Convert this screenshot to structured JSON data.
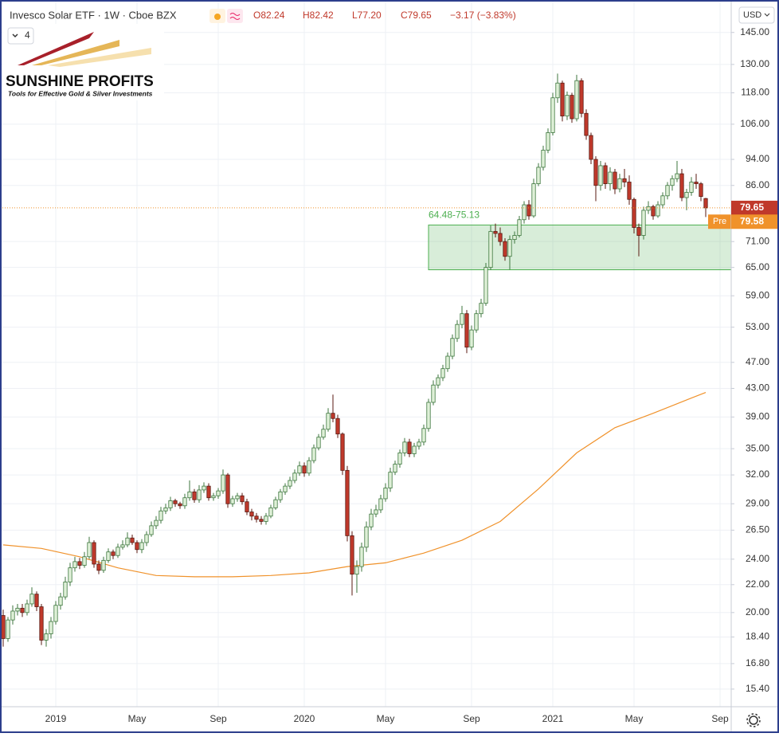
{
  "header": {
    "title": "Invesco Solar ETF · 1W · Cboe BZX",
    "ohlc_legend": [
      "O82.24",
      "H82.42",
      "L77.20",
      "C79.65",
      "−3.17 (−3.83%)"
    ],
    "interval_badge": "4",
    "currency": "USD"
  },
  "logo": {
    "name": "SUNSHINE PROFITS",
    "tagline": "Tools for Effective Gold & Silver Investments"
  },
  "chart_data": {
    "type": "candlestick",
    "log_scale": true,
    "grid": true,
    "up_color": "#dff0d8",
    "down_color": "#c0392b",
    "ylim": [
      14.5,
      162
    ],
    "yticks": [
      {
        "value": 15.4,
        "label": "15.40"
      },
      {
        "value": 16.8,
        "label": "16.80"
      },
      {
        "value": 18.4,
        "label": "18.40"
      },
      {
        "value": 20,
        "label": "20.00"
      },
      {
        "value": 22,
        "label": "22.00"
      },
      {
        "value": 24,
        "label": "24.00"
      },
      {
        "value": 26.5,
        "label": "26.50"
      },
      {
        "value": 29,
        "label": "29.00"
      },
      {
        "value": 32,
        "label": "32.00"
      },
      {
        "value": 35,
        "label": "35.00"
      },
      {
        "value": 39,
        "label": "39.00"
      },
      {
        "value": 43,
        "label": "43.00"
      },
      {
        "value": 47,
        "label": "47.00"
      },
      {
        "value": 53,
        "label": "53.00"
      },
      {
        "value": 59,
        "label": "59.00"
      },
      {
        "value": 65,
        "label": "65.00"
      },
      {
        "value": 71,
        "label": "71.00"
      },
      {
        "value": 86,
        "label": "86.00"
      },
      {
        "value": 94,
        "label": "94.00"
      },
      {
        "value": 106,
        "label": "106.00"
      },
      {
        "value": 118,
        "label": "118.00"
      },
      {
        "value": 130,
        "label": "130.00"
      },
      {
        "value": 145,
        "label": "145.00"
      }
    ],
    "categories": [
      null,
      null,
      null,
      null,
      null,
      null,
      null,
      null,
      null,
      null,
      null,
      "2019",
      null,
      null,
      null,
      null,
      null,
      null,
      null,
      null,
      null,
      null,
      null,
      null,
      null,
      null,
      null,
      null,
      "May",
      null,
      null,
      null,
      null,
      null,
      null,
      null,
      null,
      null,
      null,
      null,
      null,
      null,
      null,
      null,
      null,
      "Sep",
      null,
      null,
      null,
      null,
      null,
      null,
      null,
      null,
      null,
      null,
      null,
      null,
      null,
      null,
      null,
      null,
      null,
      "2020",
      null,
      null,
      null,
      null,
      null,
      null,
      null,
      null,
      null,
      null,
      null,
      null,
      null,
      null,
      null,
      null,
      "May",
      null,
      null,
      null,
      null,
      null,
      null,
      null,
      null,
      null,
      null,
      null,
      null,
      null,
      null,
      null,
      null,
      null,
      "Sep",
      null,
      null,
      null,
      null,
      null,
      null,
      null,
      null,
      null,
      null,
      null,
      null,
      null,
      null,
      null,
      null,
      "2021",
      null,
      null,
      null,
      null,
      null,
      null,
      null,
      null,
      null,
      null,
      null,
      null,
      null,
      null,
      null,
      null,
      "May",
      null,
      null,
      null,
      null,
      null,
      null,
      null,
      null,
      null,
      null,
      null,
      null,
      null,
      null,
      null,
      null,
      null,
      "Sep"
    ],
    "open": [
      19.8,
      18.3,
      19.5,
      20.1,
      20.3,
      20.0,
      20.6,
      21.3,
      20.4,
      18.2,
      18.6,
      19.4,
      20.5,
      21.1,
      22.2,
      23.3,
      23.8,
      23.5,
      24.2,
      25.4,
      23.6,
      23.1,
      23.9,
      24.6,
      24.3,
      25.0,
      25.2,
      25.8,
      25.4,
      24.8,
      25.4,
      26.1,
      26.9,
      27.4,
      28.3,
      28.6,
      29.3,
      29.0,
      28.8,
      29.6,
      30.2,
      29.4,
      30.4,
      30.8,
      29.6,
      29.8,
      30.3,
      32.0,
      29.0,
      29.5,
      29.8,
      29.2,
      28.2,
      27.8,
      27.5,
      27.3,
      27.8,
      28.6,
      29.4,
      30.2,
      30.8,
      31.4,
      32.2,
      33.0,
      32.2,
      33.6,
      35.1,
      36.4,
      37.4,
      39.5,
      38.8,
      36.8,
      32.5,
      26.0,
      22.8,
      23.4,
      25.0,
      26.8,
      28.0,
      28.4,
      29.5,
      30.6,
      32.3,
      33.2,
      34.5,
      35.8,
      34.4,
      35.3,
      35.8,
      37.5,
      41.0,
      43.5,
      44.6,
      46.0,
      48.0,
      51.0,
      53.5,
      55.5,
      49.5,
      52.5,
      55.5,
      57.5,
      65.0,
      73.5,
      73.0,
      71.0,
      67.5,
      71.5,
      72.5,
      76.5,
      80.5,
      77.5,
      86.5,
      91.5,
      97.0,
      103.0,
      116.0,
      122.0,
      109.0,
      117.0,
      108.0,
      123.0,
      110.0,
      102.0,
      94.0,
      86.0,
      92.0,
      86.5,
      90.0,
      85.0,
      88.0,
      87.0,
      82.0,
      74.5,
      72.5,
      79.0,
      80.0,
      77.5,
      80.5,
      83.0,
      86.0,
      88.0,
      89.5,
      82.5,
      84.0,
      87.0,
      86.5,
      82.24,
      null,
      null,
      null
    ],
    "high": [
      20.2,
      19.7,
      20.5,
      20.6,
      20.6,
      20.9,
      21.8,
      21.5,
      20.6,
      18.9,
      19.7,
      20.8,
      21.4,
      22.6,
      23.7,
      24.2,
      24.1,
      24.6,
      25.9,
      25.6,
      23.9,
      24.2,
      24.9,
      24.8,
      25.3,
      25.6,
      26.3,
      26.1,
      25.6,
      25.7,
      26.4,
      27.3,
      27.8,
      28.7,
      29.0,
      29.7,
      29.5,
      29.2,
      30.0,
      31.4,
      30.5,
      30.9,
      31.2,
      31.1,
      30.1,
      30.6,
      32.6,
      32.2,
      29.8,
      30.1,
      30.1,
      29.5,
      28.5,
      28.1,
      27.8,
      28.1,
      28.9,
      29.7,
      30.5,
      31.1,
      31.8,
      32.6,
      33.5,
      33.4,
      34.0,
      35.5,
      36.8,
      38.0,
      40.2,
      42.1,
      39.3,
      37.0,
      33.0,
      26.4,
      23.9,
      25.4,
      27.3,
      28.5,
      28.9,
      29.9,
      31.1,
      32.8,
      33.6,
      34.9,
      36.3,
      36.2,
      35.7,
      36.2,
      38.0,
      41.5,
      44.2,
      45.1,
      46.6,
      48.6,
      51.7,
      54.3,
      57.0,
      56.2,
      53.3,
      56.2,
      58.4,
      66.0,
      75.0,
      75.5,
      74.5,
      71.8,
      72.5,
      73.5,
      77.5,
      81.5,
      81.8,
      88.0,
      92.8,
      98.5,
      104.5,
      118.0,
      126.0,
      123.0,
      118.5,
      118.0,
      125.5,
      124.0,
      111.5,
      103.0,
      95.0,
      93.5,
      93.0,
      91.5,
      91.0,
      89.5,
      91.0,
      89.0,
      82.5,
      75.5,
      80.0,
      81.5,
      80.5,
      81.5,
      84.0,
      87.0,
      89.0,
      93.5,
      91.0,
      85.0,
      88.5,
      89.5,
      87.0,
      82.42,
      null,
      null,
      null
    ],
    "low": [
      17.8,
      18.1,
      19.2,
      19.8,
      19.7,
      19.8,
      20.4,
      20.1,
      17.9,
      17.8,
      18.3,
      19.2,
      20.2,
      20.9,
      21.9,
      23.0,
      23.2,
      23.3,
      24.0,
      23.3,
      22.8,
      22.9,
      23.7,
      24.0,
      24.1,
      24.8,
      25.0,
      25.2,
      24.5,
      24.5,
      25.1,
      25.9,
      26.6,
      27.1,
      28.0,
      28.3,
      28.7,
      28.5,
      28.5,
      29.3,
      29.1,
      29.1,
      30.1,
      29.3,
      29.3,
      29.5,
      30.0,
      28.6,
      28.7,
      29.2,
      28.9,
      27.9,
      27.4,
      27.2,
      27.0,
      27.0,
      27.6,
      28.4,
      29.1,
      29.9,
      30.5,
      31.1,
      31.9,
      31.8,
      31.9,
      33.3,
      34.8,
      36.1,
      37.1,
      38.3,
      36.3,
      32.0,
      25.5,
      21.2,
      21.4,
      23.0,
      24.6,
      26.5,
      27.7,
      28.1,
      29.2,
      30.2,
      32.0,
      32.8,
      34.1,
      34.0,
      34.0,
      34.9,
      35.4,
      37.1,
      40.6,
      43.0,
      44.1,
      45.5,
      47.5,
      50.4,
      52.8,
      48.5,
      49.0,
      52.0,
      54.8,
      57.0,
      64.4,
      72.0,
      70.0,
      66.5,
      64.5,
      70.5,
      72.0,
      75.5,
      76.5,
      77.0,
      85.8,
      90.5,
      96.0,
      102.0,
      114.0,
      107.0,
      107.5,
      106.5,
      107.0,
      108.5,
      100.5,
      92.5,
      81.5,
      84.5,
      85.0,
      84.5,
      83.5,
      84.0,
      85.5,
      80.5,
      73.0,
      67.5,
      71.5,
      78.0,
      76.5,
      77.0,
      79.5,
      82.0,
      84.5,
      87.0,
      81.5,
      79.0,
      83.0,
      85.0,
      81.5,
      77.2,
      null,
      null,
      null
    ],
    "close": [
      18.3,
      19.5,
      20.1,
      20.3,
      20.0,
      20.6,
      21.3,
      20.4,
      18.2,
      18.6,
      19.4,
      20.5,
      21.1,
      22.2,
      23.3,
      23.8,
      23.5,
      24.2,
      25.4,
      23.6,
      23.1,
      23.9,
      24.6,
      24.3,
      25.0,
      25.2,
      25.8,
      25.4,
      24.8,
      25.4,
      26.1,
      26.9,
      27.4,
      28.3,
      28.6,
      29.3,
      29.0,
      28.8,
      29.6,
      30.2,
      29.4,
      30.4,
      30.8,
      29.6,
      29.8,
      30.3,
      32.0,
      29.0,
      29.5,
      29.8,
      29.2,
      28.2,
      27.8,
      27.5,
      27.3,
      27.8,
      28.6,
      29.4,
      30.2,
      30.8,
      31.4,
      32.2,
      33.0,
      32.2,
      33.6,
      35.1,
      36.4,
      37.4,
      39.5,
      38.8,
      36.8,
      32.5,
      26.0,
      22.8,
      23.4,
      25.0,
      26.8,
      28.0,
      28.4,
      29.5,
      30.6,
      32.3,
      33.2,
      34.5,
      35.8,
      34.4,
      35.3,
      35.8,
      37.5,
      41.0,
      43.5,
      44.6,
      46.0,
      48.0,
      51.0,
      53.5,
      55.5,
      49.5,
      52.5,
      55.5,
      57.5,
      65.0,
      73.5,
      73.0,
      71.0,
      67.5,
      71.5,
      72.5,
      76.5,
      80.5,
      77.5,
      86.5,
      91.5,
      97.0,
      103.0,
      116.0,
      122.0,
      109.0,
      117.0,
      108.0,
      123.0,
      110.0,
      102.0,
      94.0,
      86.0,
      92.0,
      86.5,
      90.0,
      85.0,
      88.0,
      87.0,
      82.0,
      74.5,
      72.5,
      79.0,
      80.0,
      77.5,
      80.5,
      83.0,
      86.0,
      88.0,
      89.5,
      82.5,
      84.0,
      87.0,
      86.5,
      82.82,
      79.65,
      null,
      null,
      null
    ],
    "ma": {
      "color": "#f0922b",
      "x": [
        0,
        8,
        16,
        24,
        32,
        40,
        48,
        56,
        64,
        72,
        80,
        88,
        96,
        104,
        112,
        120,
        128,
        136,
        144,
        147
      ],
      "values": [
        25.2,
        24.9,
        24.2,
        23.3,
        22.7,
        22.6,
        22.6,
        22.7,
        22.9,
        23.4,
        23.7,
        24.5,
        25.6,
        27.3,
        30.5,
        34.5,
        37.6,
        39.5,
        41.6,
        42.4
      ]
    },
    "zone": {
      "label": "64.48-75.13",
      "high": 75.13,
      "low": 64.48,
      "start": 89,
      "color": "#4caf50"
    },
    "last_price": 79.65,
    "pre_market": {
      "label": "Pre",
      "value": 79.58
    }
  }
}
